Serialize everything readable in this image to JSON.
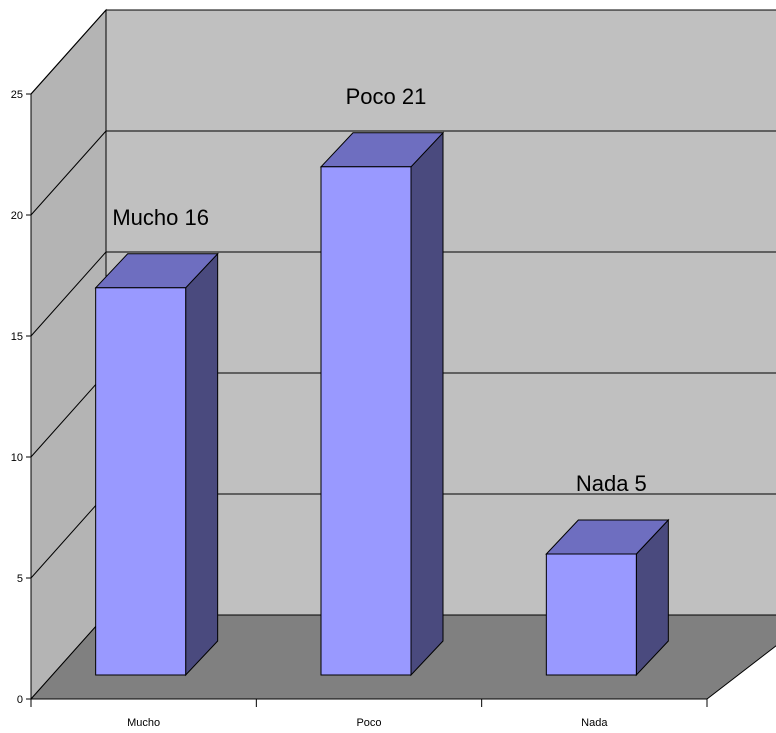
{
  "chart_data": {
    "type": "bar",
    "title": "",
    "xlabel": "",
    "ylabel": "",
    "categories": [
      "Mucho",
      "Poco",
      "Nada"
    ],
    "values": [
      16,
      21,
      5
    ],
    "data_labels": [
      "Mucho 16",
      "Poco 21",
      "Nada 5"
    ],
    "ylim": [
      0,
      25
    ],
    "yticks": [
      0,
      5,
      10,
      15,
      20,
      25
    ],
    "ytick_labels": [
      "0",
      "5",
      "10",
      "15",
      "20",
      "25"
    ],
    "grid": true,
    "legend": "none",
    "colors": {
      "bar_front": "#9999ff",
      "bar_top": "#6e6ec0",
      "bar_side": "#4a4a7e",
      "back_wall": "#c0c0c0",
      "side_wall": "#b4b4b4",
      "floor": "#808080",
      "edge": "#000000"
    }
  }
}
